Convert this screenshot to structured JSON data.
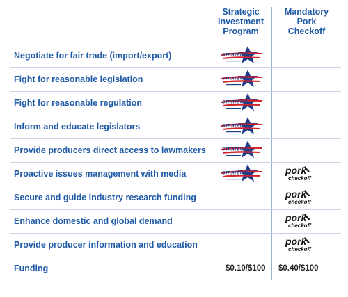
{
  "header": {
    "col1": [
      "Strategic",
      "Investment",
      "Program"
    ],
    "col2": [
      "Mandatory",
      "Pork",
      "Checkoff"
    ]
  },
  "rows": [
    {
      "label": "Negotiate for fair trade (import/export)",
      "sip": true,
      "pork": false
    },
    {
      "label": "Fight for reasonable legislation",
      "sip": true,
      "pork": false
    },
    {
      "label": "Fight for reasonable regulation",
      "sip": true,
      "pork": false
    },
    {
      "label": "Inform and educate legislators",
      "sip": true,
      "pork": false
    },
    {
      "label": "Provide producers direct access to lawmakers",
      "sip": true,
      "pork": false
    },
    {
      "label": "Proactive issues management with media",
      "sip": true,
      "pork": true
    },
    {
      "label": "Secure and guide industry research funding",
      "sip": false,
      "pork": true
    },
    {
      "label": "Enhance domestic and global demand",
      "sip": false,
      "pork": true
    },
    {
      "label": "Provide producer information and education",
      "sip": false,
      "pork": true
    }
  ],
  "funding": {
    "label": "Funding",
    "sip_value": "$0.10/$100",
    "pork_value": "$0.40/$100"
  },
  "logos": {
    "sip_text": "STRATEGIC",
    "pork_text_1": "pork",
    "pork_text_2": "checkoff"
  },
  "colors": {
    "text_blue": "#1f5aa6",
    "star_blue": "#1f3e8a",
    "star_red": "#d2232a",
    "divider": "#c9d6e8"
  }
}
